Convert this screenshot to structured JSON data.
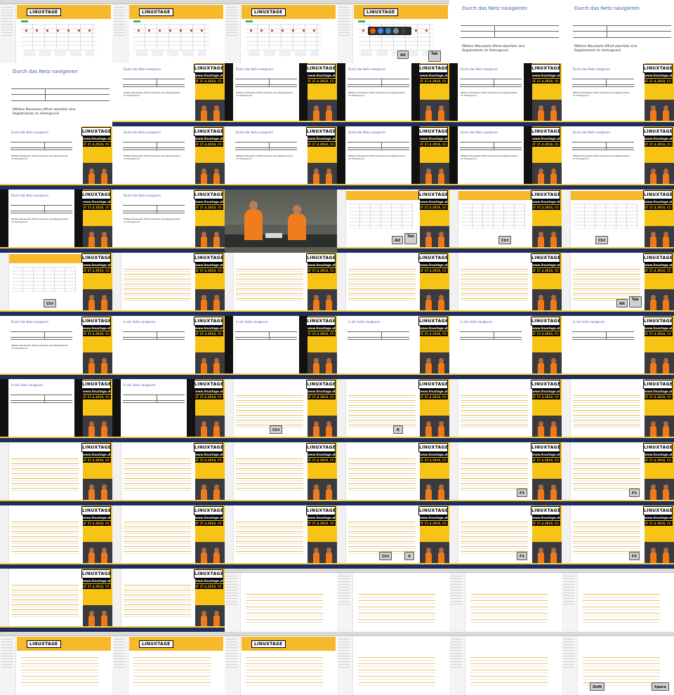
{
  "logo_text": "LINUXTAGE",
  "stream_url": "www.linuxtage.at",
  "stream_license": "LT 27.4.2018, CC-BY 3.0",
  "slide_title_net": "Durch das Netz navigieren",
  "slide_title_page": "In der Seite navigieren",
  "slide_note_net": "Mittlere Maustaste öffnet ebenfalls eine Registerkarte im Hintergrund",
  "keys": {
    "alt": "Alt",
    "tab": "Tab",
    "tab_sub": "Tab",
    "ctrl": "Ctrl",
    "r": "R",
    "f3": "F3",
    "x": "X",
    "shift": "Shift",
    "space": "Space"
  },
  "colors": {
    "stream_yellow": "#f7c416",
    "banner_orange": "#f7b92c",
    "slide_title_blue": "#3b5aa5",
    "shirt_orange": "#ef7d1e"
  }
}
